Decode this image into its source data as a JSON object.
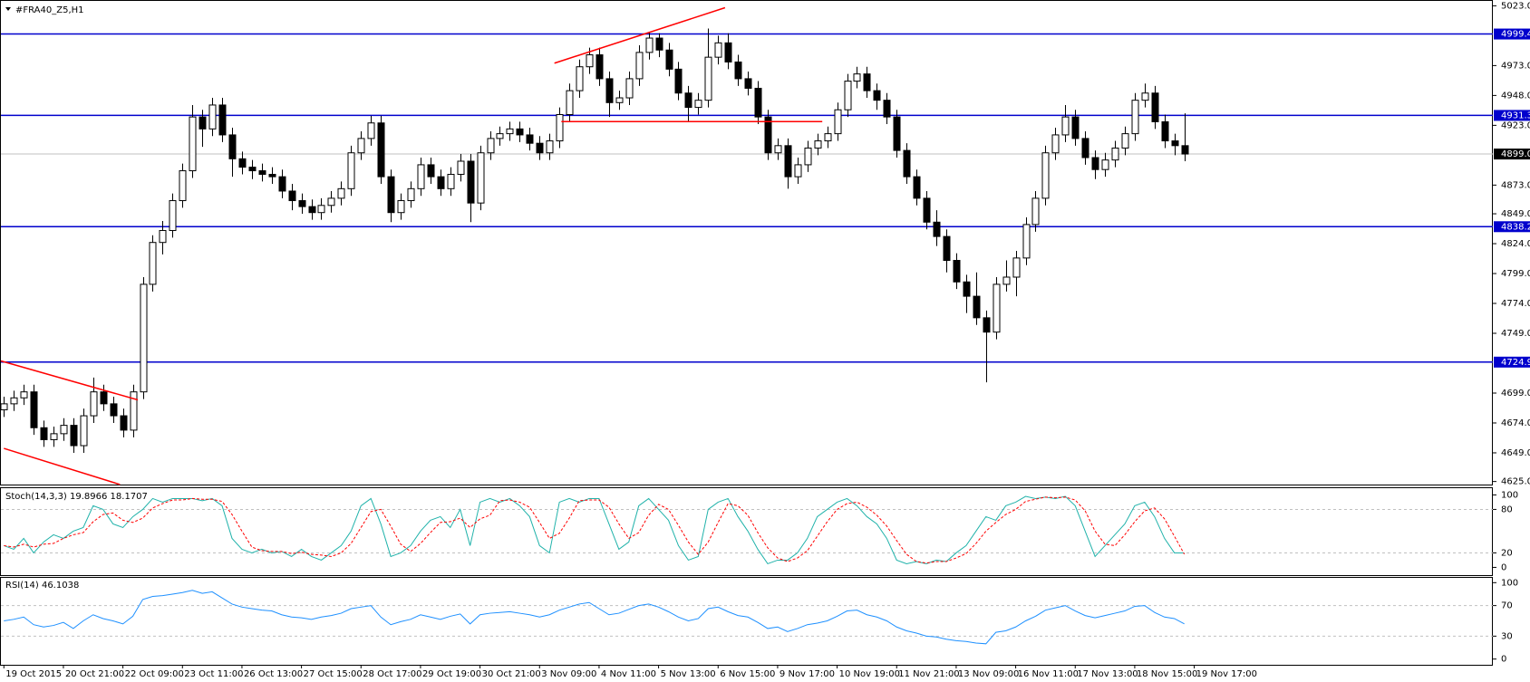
{
  "chart_data": [
    {
      "type": "candlestick",
      "title": "#FRA40_Z5,H1",
      "xlim": [
        -0.3,
        150.1
      ],
      "xticks": [
        {
          "value": 0,
          "label": "19 Oct 2015"
        },
        {
          "value": 6,
          "label": "20 Oct 21:00"
        },
        {
          "value": 12,
          "label": "22 Oct 09:00"
        },
        {
          "value": 18,
          "label": "23 Oct 11:00"
        },
        {
          "value": 24,
          "label": "26 Oct 13:00"
        },
        {
          "value": 30,
          "label": "27 Oct 15:00"
        },
        {
          "value": 36,
          "label": "28 Oct 17:00"
        },
        {
          "value": 42,
          "label": "29 Oct 19:00"
        },
        {
          "value": 48,
          "label": "30 Oct 21:00"
        },
        {
          "value": 54,
          "label": "3 Nov 09:00"
        },
        {
          "value": 60,
          "label": "4 Nov 11:00"
        },
        {
          "value": 66,
          "label": "5 Nov 13:00"
        },
        {
          "value": 72,
          "label": "6 Nov 15:00"
        },
        {
          "value": 78,
          "label": "9 Nov 17:00"
        },
        {
          "value": 84,
          "label": "10 Nov 19:00"
        },
        {
          "value": 90,
          "label": "11 Nov 21:00"
        },
        {
          "value": 96,
          "label": "13 Nov 09:00"
        },
        {
          "value": 102,
          "label": "16 Nov 11:00"
        },
        {
          "value": 108,
          "label": "17 Nov 13:00"
        },
        {
          "value": 114,
          "label": "18 Nov 15:00"
        },
        {
          "value": 120,
          "label": "19 Nov 17:00"
        }
      ],
      "ylim": [
        4621.7,
        5027.1
      ],
      "yticks": [
        {
          "value": 5023,
          "label": "5023.0"
        },
        {
          "value": 4973,
          "label": "4973.0"
        },
        {
          "value": 4948,
          "label": "4948.0"
        },
        {
          "value": 4923,
          "label": "4923.0"
        },
        {
          "value": 4873,
          "label": "4873.0"
        },
        {
          "value": 4849,
          "label": "4849.0"
        },
        {
          "value": 4824,
          "label": "4824.0"
        },
        {
          "value": 4799,
          "label": "4799.0"
        },
        {
          "value": 4774,
          "label": "4774.0"
        },
        {
          "value": 4749,
          "label": "4749.0"
        },
        {
          "value": 4699,
          "label": "4699.0"
        },
        {
          "value": 4674,
          "label": "4674.0"
        },
        {
          "value": 4649,
          "label": "4649.0"
        },
        {
          "value": 4625,
          "label": "4625.0"
        }
      ],
      "levels": [
        {
          "value": 4999.4,
          "label": "4999.4"
        },
        {
          "value": 4931.3,
          "label": "4931.3"
        },
        {
          "value": 4838.2,
          "label": "4838.2"
        },
        {
          "value": 4724.9,
          "label": "4724.9"
        }
      ],
      "level_color": "#0000cd",
      "current_price": {
        "value": 4899.0,
        "label": "4899.0"
      },
      "trendlines": [
        {
          "x": [
            -0.3,
            13.5
          ],
          "y": [
            4725.9,
            4693.3
          ]
        },
        {
          "x": [
            0,
            11.7
          ],
          "y": [
            4652.7,
            4622.5
          ]
        },
        {
          "x": [
            55.5,
            72.7
          ],
          "y": [
            4975.0,
            5021.4
          ]
        },
        {
          "x": [
            56.2,
            82.5
          ],
          "y": [
            4926.1,
            4926.1
          ]
        }
      ],
      "trendline_color": "#ff0000",
      "open": [
        4685,
        4690,
        4695,
        4700,
        4670,
        4660,
        4665,
        4672,
        4655,
        4680,
        4700,
        4690,
        4680,
        4668,
        4700,
        4790,
        4825,
        4835,
        4860,
        4885,
        4930,
        4920,
        4940,
        4915,
        4895,
        4888,
        4885,
        4882,
        4880,
        4868,
        4860,
        4855,
        4850,
        4856,
        4862,
        4870,
        4900,
        4912,
        4925,
        4880,
        4850,
        4860,
        4870,
        4890,
        4880,
        4870,
        4882,
        4893,
        4858,
        4900,
        4912,
        4916,
        4920,
        4915,
        4908,
        4900,
        4910,
        4932,
        4952,
        4972,
        4982,
        4962,
        4942,
        4946,
        4962,
        4984,
        4996,
        4986,
        4970,
        4950,
        4938,
        4944,
        4980,
        4992,
        4976,
        4962,
        4954,
        4930,
        4900,
        4906,
        4880,
        4890,
        4904,
        4910,
        4916,
        4936,
        4960,
        4966,
        4952,
        4944,
        4930,
        4902,
        4880,
        4862,
        4842,
        4830,
        4810,
        4792,
        4780,
        4762,
        4750,
        4790,
        4796,
        4812,
        4840,
        4862,
        4900,
        4915,
        4930,
        4912,
        4896,
        4886,
        4894,
        4904,
        4916,
        4944,
        4950,
        4926,
        4910,
        4906
      ],
      "high": [
        4696,
        4701,
        4706,
        4706,
        4676,
        4671,
        4678,
        4678,
        4686,
        4712,
        4706,
        4696,
        4686,
        4706,
        4796,
        4831,
        4843,
        4866,
        4891,
        4940,
        4936,
        4946,
        4946,
        4921,
        4901,
        4894,
        4891,
        4888,
        4886,
        4874,
        4866,
        4861,
        4862,
        4868,
        4876,
        4906,
        4918,
        4931,
        4931,
        4886,
        4866,
        4876,
        4896,
        4896,
        4886,
        4888,
        4899,
        4899,
        4906,
        4918,
        4922,
        4926,
        4926,
        4921,
        4914,
        4916,
        4938,
        4958,
        4978,
        4988,
        4988,
        4968,
        4952,
        4968,
        4990,
        5001,
        5000,
        4992,
        4976,
        4956,
        4950,
        5004,
        4998,
        5000,
        4982,
        4968,
        4960,
        4936,
        4912,
        4912,
        4896,
        4910,
        4916,
        4922,
        4942,
        4966,
        4972,
        4972,
        4958,
        4950,
        4936,
        4908,
        4886,
        4868,
        4852,
        4836,
        4816,
        4798,
        4800,
        4768,
        4796,
        4810,
        4818,
        4846,
        4868,
        4906,
        4921,
        4940,
        4936,
        4918,
        4902,
        4900,
        4910,
        4922,
        4950,
        4958,
        4956,
        4932,
        4916,
        4933
      ],
      "low": [
        4679,
        4684,
        4689,
        4664,
        4654,
        4654,
        4659,
        4649,
        4649,
        4674,
        4684,
        4674,
        4662,
        4662,
        4694,
        4784,
        4815,
        4829,
        4854,
        4879,
        4905,
        4914,
        4909,
        4880,
        4882,
        4878,
        4876,
        4874,
        4862,
        4852,
        4849,
        4844,
        4844,
        4850,
        4856,
        4864,
        4894,
        4906,
        4874,
        4842,
        4844,
        4854,
        4864,
        4874,
        4864,
        4864,
        4876,
        4842,
        4852,
        4894,
        4906,
        4910,
        4909,
        4902,
        4894,
        4894,
        4904,
        4926,
        4946,
        4966,
        4956,
        4930,
        4936,
        4940,
        4956,
        4978,
        4980,
        4964,
        4944,
        4926,
        4932,
        4938,
        4974,
        4970,
        4956,
        4948,
        4924,
        4894,
        4894,
        4870,
        4874,
        4884,
        4898,
        4904,
        4910,
        4930,
        4954,
        4946,
        4936,
        4924,
        4896,
        4874,
        4856,
        4836,
        4822,
        4800,
        4786,
        4766,
        4756,
        4708,
        4744,
        4784,
        4780,
        4806,
        4834,
        4856,
        4894,
        4909,
        4906,
        4890,
        4878,
        4880,
        4888,
        4898,
        4910,
        4938,
        4920,
        4904,
        4898,
        4893
      ],
      "close": [
        4690,
        4695,
        4700,
        4670,
        4660,
        4665,
        4672,
        4655,
        4680,
        4700,
        4690,
        4680,
        4668,
        4700,
        4790,
        4825,
        4835,
        4860,
        4885,
        4930,
        4920,
        4940,
        4915,
        4895,
        4888,
        4885,
        4882,
        4880,
        4868,
        4860,
        4855,
        4850,
        4856,
        4862,
        4870,
        4900,
        4912,
        4925,
        4880,
        4850,
        4860,
        4870,
        4890,
        4880,
        4870,
        4882,
        4893,
        4858,
        4900,
        4912,
        4916,
        4920,
        4915,
        4908,
        4900,
        4910,
        4932,
        4952,
        4972,
        4982,
        4962,
        4942,
        4946,
        4962,
        4984,
        4996,
        4986,
        4970,
        4950,
        4938,
        4944,
        4980,
        4992,
        4976,
        4962,
        4954,
        4930,
        4900,
        4906,
        4880,
        4890,
        4904,
        4910,
        4916,
        4936,
        4960,
        4966,
        4952,
        4944,
        4930,
        4902,
        4880,
        4862,
        4842,
        4830,
        4810,
        4792,
        4780,
        4762,
        4750,
        4790,
        4796,
        4812,
        4840,
        4862,
        4900,
        4915,
        4930,
        4912,
        4896,
        4886,
        4894,
        4904,
        4916,
        4944,
        4950,
        4926,
        4910,
        4906,
        4899
      ]
    },
    {
      "type": "line",
      "title": "Stoch(14,3,3) 19.8966 18.1707",
      "xlim": [
        -0.3,
        150.1
      ],
      "ylim": [
        -10.7,
        109.3
      ],
      "yticks": [
        100,
        80,
        20,
        0
      ],
      "series": [
        {
          "name": "Main",
          "color": "#20b2aa",
          "dash": false,
          "values": [
            30,
            25,
            40,
            20,
            35,
            45,
            40,
            50,
            55,
            85,
            80,
            60,
            55,
            70,
            80,
            95,
            90,
            95,
            95,
            95,
            92,
            95,
            85,
            40,
            25,
            20,
            25,
            20,
            22,
            15,
            25,
            15,
            10,
            20,
            30,
            50,
            85,
            95,
            60,
            15,
            20,
            30,
            50,
            65,
            70,
            55,
            80,
            30,
            90,
            95,
            90,
            95,
            85,
            70,
            30,
            20,
            90,
            95,
            90,
            95,
            95,
            60,
            25,
            35,
            85,
            95,
            80,
            65,
            30,
            10,
            15,
            80,
            90,
            95,
            70,
            50,
            25,
            5,
            10,
            10,
            20,
            40,
            70,
            80,
            90,
            95,
            85,
            70,
            60,
            40,
            10,
            5,
            8,
            5,
            10,
            8,
            20,
            30,
            50,
            70,
            65,
            85,
            90,
            98,
            95,
            97,
            95,
            98,
            85,
            50,
            15,
            30,
            45,
            60,
            85,
            90,
            70,
            40,
            20,
            19.8966
          ]
        },
        {
          "name": "Signal",
          "color": "#ff0000",
          "dash": true,
          "values": [
            30,
            28,
            32,
            28,
            32,
            33,
            40,
            45,
            48,
            63,
            73,
            75,
            65,
            62,
            68,
            82,
            88,
            93,
            93,
            95,
            94,
            94,
            91,
            73,
            50,
            28,
            23,
            22,
            22,
            19,
            21,
            18,
            17,
            15,
            20,
            33,
            55,
            77,
            80,
            57,
            32,
            22,
            33,
            48,
            62,
            63,
            68,
            55,
            67,
            72,
            92,
            93,
            90,
            83,
            62,
            40,
            47,
            68,
            92,
            93,
            93,
            83,
            60,
            40,
            48,
            72,
            87,
            80,
            58,
            35,
            18,
            35,
            62,
            88,
            85,
            72,
            48,
            27,
            13,
            8,
            13,
            23,
            43,
            63,
            80,
            88,
            90,
            83,
            72,
            57,
            37,
            18,
            8,
            6,
            8,
            8,
            13,
            19,
            33,
            50,
            62,
            73,
            80,
            91,
            94,
            97,
            96,
            97,
            93,
            78,
            50,
            32,
            30,
            45,
            63,
            78,
            82,
            67,
            43,
            18.1707
          ]
        }
      ]
    },
    {
      "type": "line",
      "title": "RSI(14) 46.1038",
      "xlim": [
        -0.3,
        150.1
      ],
      "ylim": [
        -7.5,
        106.3
      ],
      "yticks": [
        100,
        70,
        30,
        0
      ],
      "series": [
        {
          "name": "RSI",
          "color": "#1e90ff",
          "dash": false,
          "values": [
            50,
            52,
            55,
            45,
            42,
            44,
            48,
            40,
            50,
            58,
            53,
            50,
            46,
            56,
            78,
            82,
            83,
            85,
            87,
            90,
            86,
            88,
            80,
            72,
            68,
            66,
            64,
            63,
            58,
            55,
            54,
            52,
            55,
            57,
            60,
            66,
            68,
            70,
            55,
            45,
            49,
            52,
            58,
            55,
            52,
            56,
            59,
            46,
            58,
            60,
            61,
            62,
            60,
            58,
            55,
            58,
            64,
            68,
            72,
            74,
            66,
            58,
            60,
            65,
            70,
            72,
            68,
            62,
            55,
            50,
            53,
            66,
            68,
            62,
            57,
            55,
            48,
            40,
            42,
            36,
            40,
            45,
            47,
            50,
            56,
            63,
            64,
            58,
            55,
            50,
            42,
            37,
            34,
            30,
            29,
            26,
            24,
            23,
            21,
            20,
            35,
            37,
            42,
            50,
            56,
            64,
            67,
            70,
            63,
            57,
            54,
            57,
            60,
            63,
            69,
            70,
            61,
            55,
            53,
            46.1038
          ]
        }
      ]
    }
  ]
}
